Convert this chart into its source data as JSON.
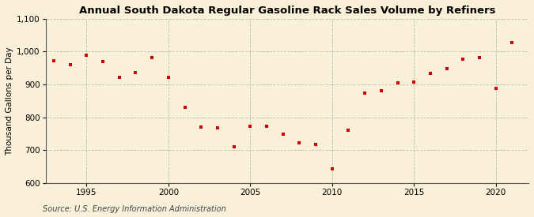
{
  "title": "Annual South Dakota Regular Gasoline Rack Sales Volume by Refiners",
  "ylabel": "Thousand Gallons per Day",
  "source": "Source: U.S. Energy Information Administration",
  "background_color": "#faefd8",
  "plot_background_color": "#faefd8",
  "marker_color": "#cc0000",
  "years": [
    1993,
    1994,
    1995,
    1996,
    1997,
    1998,
    1999,
    2000,
    2001,
    2002,
    2003,
    2004,
    2005,
    2006,
    2007,
    2008,
    2009,
    2010,
    2011,
    2012,
    2013,
    2014,
    2015,
    2016,
    2017,
    2018,
    2019,
    2020,
    2021
  ],
  "values": [
    972,
    960,
    990,
    971,
    922,
    937,
    982,
    922,
    830,
    770,
    768,
    710,
    773,
    773,
    748,
    723,
    717,
    643,
    761,
    873,
    880,
    905,
    908,
    933,
    948,
    978,
    981,
    888,
    1028
  ],
  "ylim": [
    600,
    1100
  ],
  "yticks": [
    600,
    700,
    800,
    900,
    1000,
    1100
  ],
  "xlim": [
    1992.5,
    2022
  ],
  "xticks": [
    1995,
    2000,
    2005,
    2010,
    2015,
    2020
  ],
  "grid_color": "#bbbbbb",
  "title_fontsize": 9.5,
  "label_fontsize": 7.5,
  "tick_fontsize": 7.5,
  "source_fontsize": 7
}
